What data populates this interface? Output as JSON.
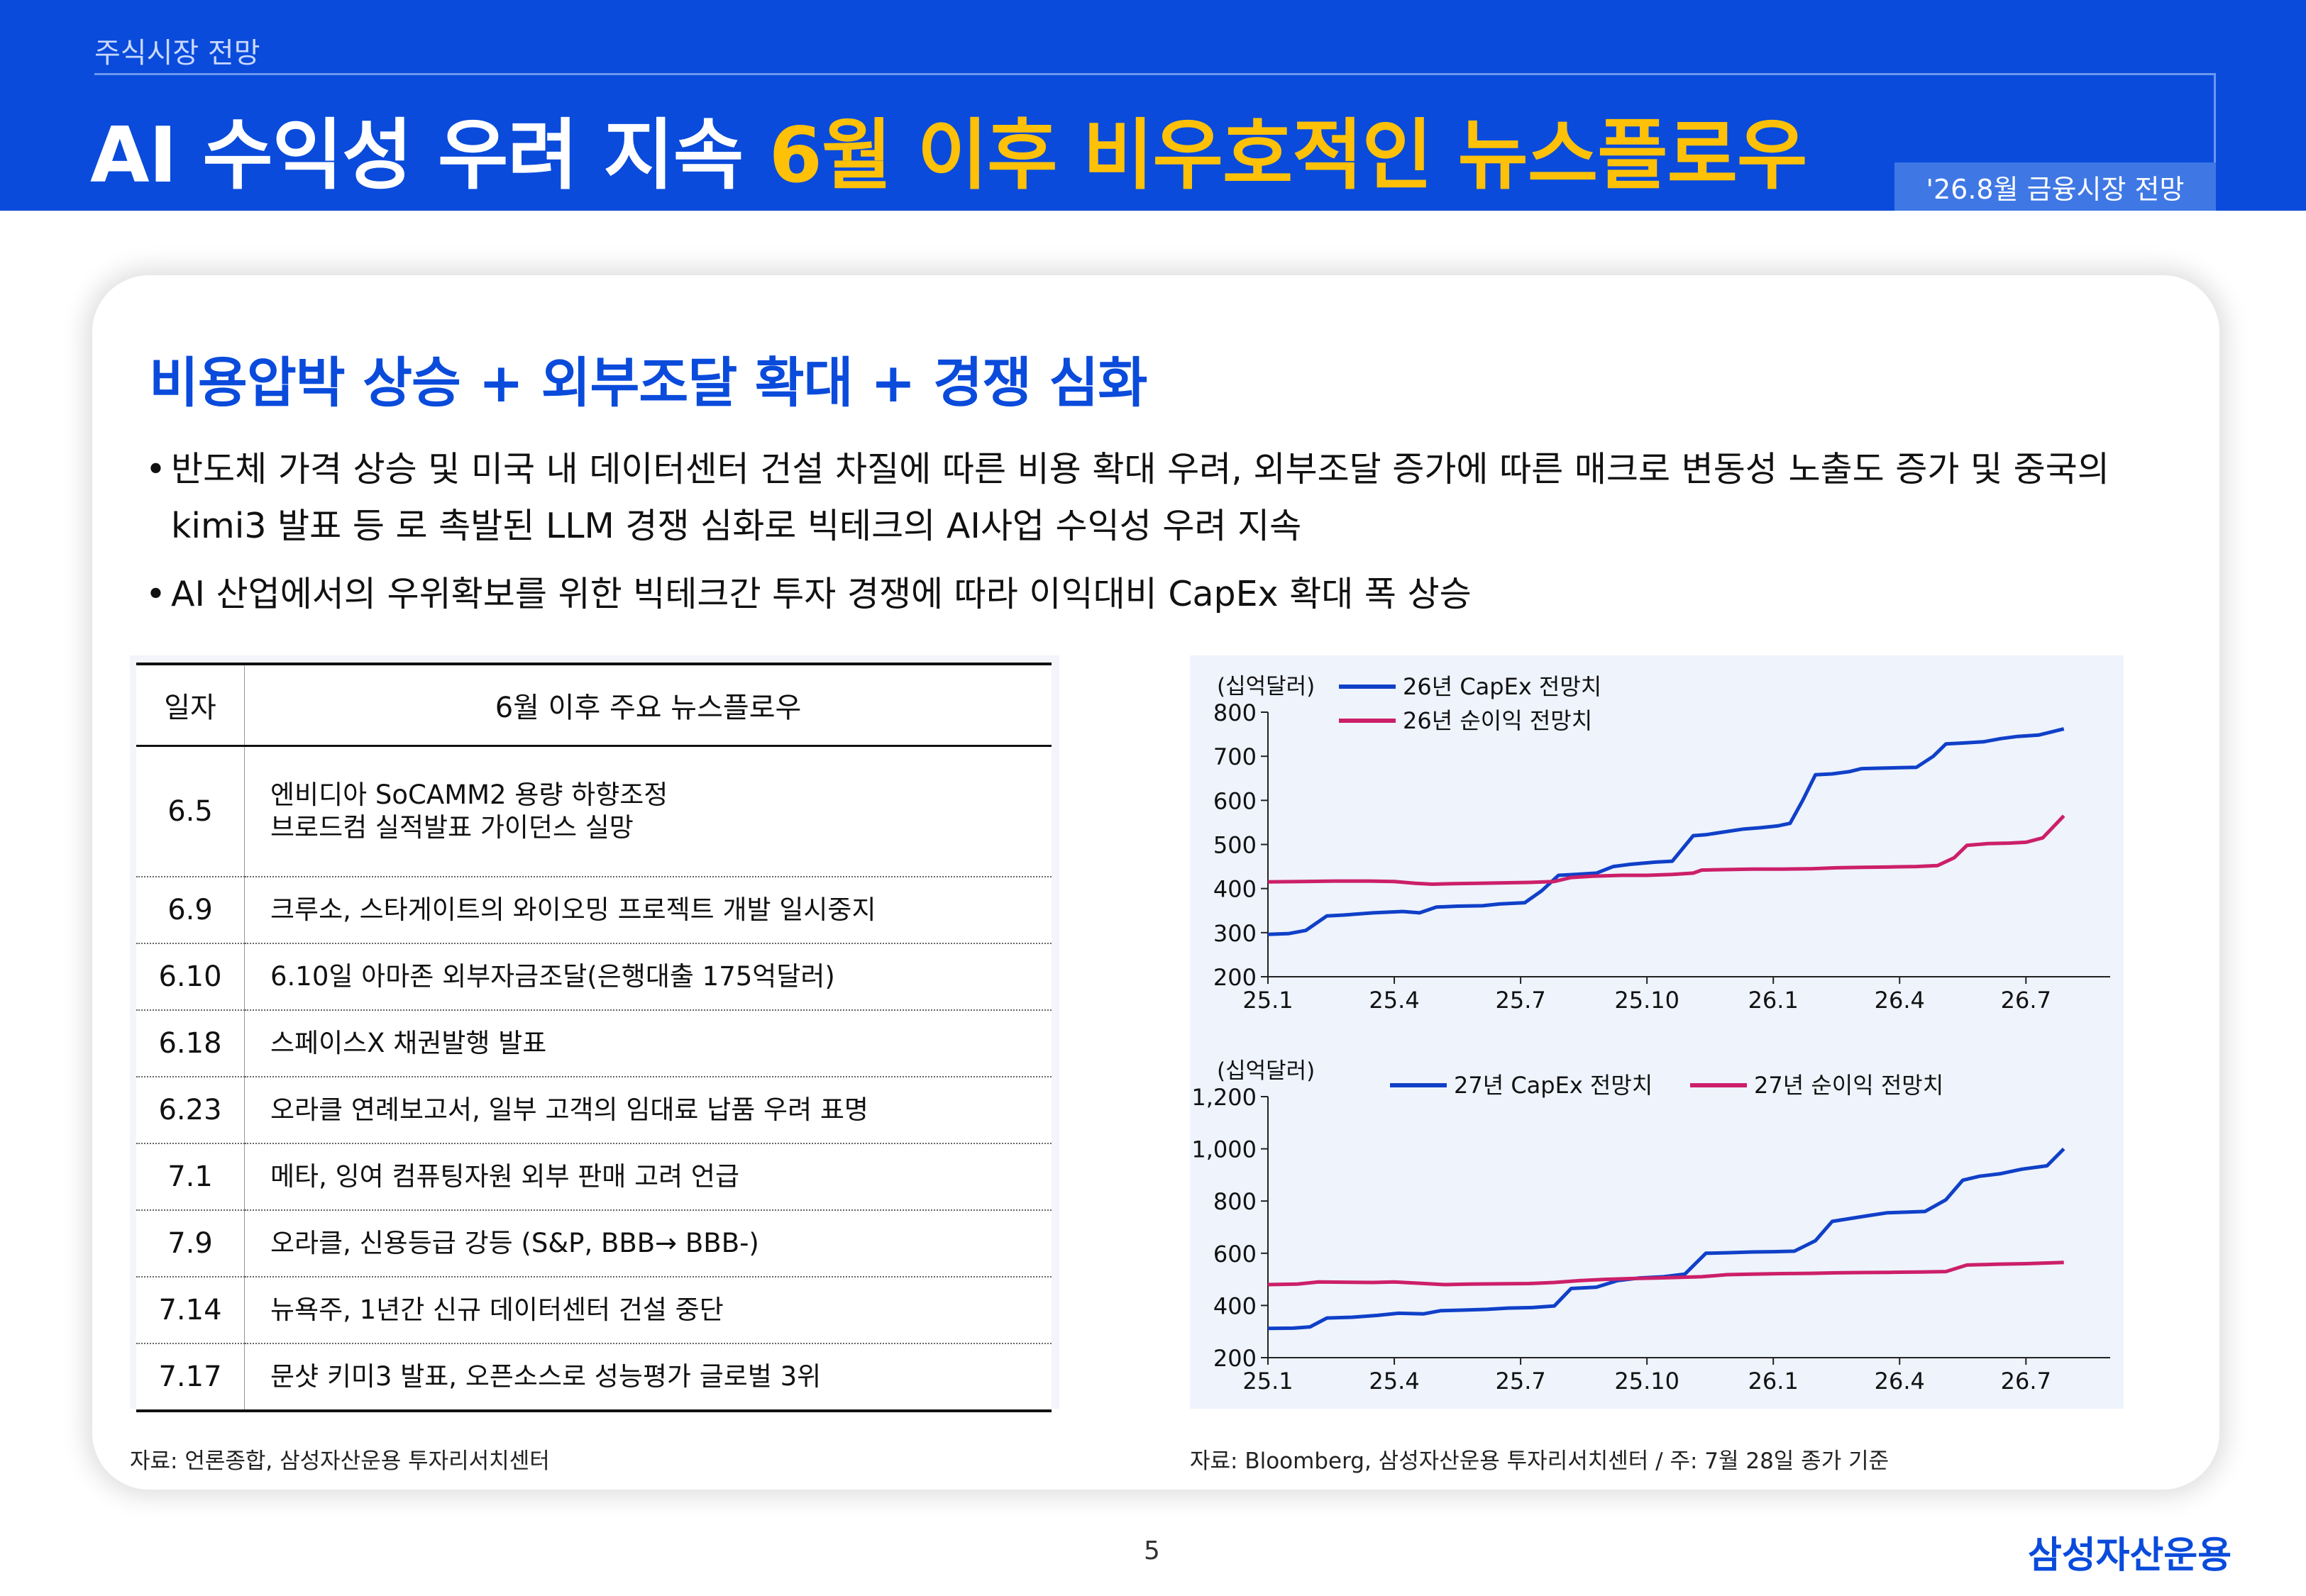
{
  "header": {
    "section_label": "주식시장 전망",
    "title_white": "AI 수익성 우려 지속",
    "title_yellow": "6월 이후 비우호적인 뉴스플로우",
    "badge": "'26.8월 금융시장 전망"
  },
  "headline": "비용압박 상승 + 외부조달 확대 + 경쟁 심화",
  "bullets": [
    "반도체 가격 상승 및 미국 내 데이터센터 건설 차질에 따른 비용 확대 우려, 외부조달 증가에 따른 매크로 변동성 노출도 증가 및 중국의 kimi3 발표 등 로 촉발된 LLM 경쟁 심화로 빅테크의 AI사업 수익성 우려 지속",
    "AI 산업에서의 우위확보를 위한 빅테크간 투자 경쟁에 따라 이익대비 CapEx 확대 폭 상승"
  ],
  "table": {
    "headers": [
      "일자",
      "6월 이후 주요 뉴스플로우"
    ],
    "rows": [
      {
        "date": "6.5",
        "events": [
          "엔비디아 SoCAMM2 용량 하향조정",
          "브로드컴 실적발표 가이던스 실망"
        ]
      },
      {
        "date": "6.9",
        "events": [
          "크루소, 스타게이트의 와이오밍 프로젝트 개발 일시중지"
        ]
      },
      {
        "date": "6.10",
        "events": [
          "6.10일 아마존 외부자금조달(은행대출 175억달러)"
        ]
      },
      {
        "date": "6.18",
        "events": [
          "스페이스X 채권발행 발표"
        ]
      },
      {
        "date": "6.23",
        "events": [
          "오라클 연례보고서, 일부 고객의 임대료 납품 우려 표명"
        ]
      },
      {
        "date": "7.1",
        "events": [
          "메타, 잉여 컴퓨팅자원 외부 판매 고려 언급"
        ]
      },
      {
        "date": "7.9",
        "events": [
          "오라클, 신용등급 강등 (S&P, BBB→ BBB-)"
        ]
      },
      {
        "date": "7.14",
        "events": [
          "뉴욕주, 1년간 신규 데이터센터 건설 중단"
        ]
      },
      {
        "date": "7.17",
        "events": [
          "문샷 키미3 발표, 오픈소스로 성능평가 글로벌 3위"
        ]
      }
    ]
  },
  "source_left": "자료: 언론종합, 삼성자산운용 투자리서치센터",
  "source_right": "자료: Bloomberg, 삼성자산운용 투자리서치센터 / 주: 7월 28일 종가 기준",
  "page_number": "5",
  "logo": "삼성자산운용",
  "chart_data": [
    {
      "type": "line",
      "ylabel": "(십억달러)",
      "ylim": [
        200,
        800
      ],
      "yticks": [
        200,
        300,
        400,
        500,
        600,
        700,
        800
      ],
      "ytick_labels": [
        "200",
        "300",
        "400",
        "500",
        "600",
        "700",
        "800"
      ],
      "xlim": [
        0,
        20
      ],
      "xticks": [
        0,
        3,
        6,
        9,
        12,
        15,
        18
      ],
      "xtick_labels": [
        "25.1",
        "25.4",
        "25.7",
        "25.10",
        "26.1",
        "26.4",
        "26.7"
      ],
      "legend_position": "top-left",
      "series": [
        {
          "name": "26년 CapEx 전망치",
          "color": "#1040c8",
          "x": [
            0,
            0.5,
            0.9,
            1.4,
            1.8,
            2.5,
            3.2,
            3.6,
            4.0,
            4.5,
            5.1,
            5.5,
            6.1,
            6.5,
            6.9,
            7.3,
            7.8,
            8.2,
            8.6,
            9.2,
            9.6,
            10.1,
            10.4,
            10.8,
            11.3,
            11.7,
            12.1,
            12.4,
            12.7,
            13.0,
            13.4,
            13.8,
            14.1,
            14.5,
            15.0,
            15.4,
            15.8,
            16.1,
            16.5,
            17.0,
            17.4,
            17.8,
            18.3,
            18.9
          ],
          "y": [
            296,
            298,
            305,
            338,
            340,
            345,
            348,
            345,
            358,
            360,
            361,
            365,
            368,
            395,
            430,
            432,
            435,
            450,
            455,
            460,
            462,
            520,
            522,
            528,
            535,
            538,
            542,
            548,
            600,
            658,
            660,
            665,
            672,
            673,
            674,
            675,
            700,
            728,
            730,
            733,
            740,
            745,
            748,
            762
          ]
        },
        {
          "name": "26년 순이익 전망치",
          "color": "#cc1f6a",
          "x": [
            0,
            0.8,
            1.6,
            2.4,
            3.0,
            3.5,
            3.9,
            4.4,
            5.0,
            5.6,
            6.2,
            6.8,
            7.2,
            7.7,
            8.4,
            9.0,
            9.6,
            10.1,
            10.3,
            10.9,
            11.5,
            12.2,
            12.9,
            13.5,
            14.1,
            14.8,
            15.4,
            15.9,
            16.3,
            16.6,
            17.1,
            17.6,
            18.0,
            18.4,
            18.9
          ],
          "y": [
            415,
            416,
            417,
            417,
            416,
            412,
            410,
            411,
            412,
            413,
            414,
            416,
            425,
            428,
            430,
            430,
            432,
            435,
            442,
            443,
            444,
            444,
            445,
            447,
            448,
            449,
            450,
            452,
            470,
            498,
            502,
            503,
            505,
            515,
            565
          ]
        }
      ]
    },
    {
      "type": "line",
      "ylabel": "(십억달러)",
      "ylim": [
        200,
        1200
      ],
      "yticks": [
        200,
        400,
        600,
        800,
        1000,
        1200
      ],
      "ytick_labels": [
        "200",
        "400",
        "600",
        "800",
        "1,000",
        "1,200"
      ],
      "xlim": [
        0,
        20
      ],
      "xticks": [
        0,
        3,
        6,
        9,
        12,
        15,
        18
      ],
      "xtick_labels": [
        "25.1",
        "25.4",
        "25.7",
        "25.10",
        "26.1",
        "26.4",
        "26.7"
      ],
      "legend_position": "top",
      "series": [
        {
          "name": "27년 CapEx 전망치",
          "color": "#1040c8",
          "x": [
            0,
            0.6,
            1.0,
            1.4,
            2.0,
            2.6,
            3.1,
            3.7,
            4.1,
            4.6,
            5.2,
            5.7,
            6.3,
            6.8,
            7.2,
            7.8,
            8.3,
            8.8,
            9.4,
            9.9,
            10.4,
            10.9,
            11.5,
            12.0,
            12.5,
            13.0,
            13.4,
            13.9,
            14.3,
            14.7,
            15.2,
            15.6,
            16.1,
            16.5,
            16.9,
            17.4,
            17.9,
            18.5,
            18.9
          ],
          "y": [
            312,
            313,
            318,
            352,
            355,
            362,
            370,
            368,
            380,
            382,
            385,
            390,
            392,
            398,
            465,
            470,
            495,
            505,
            510,
            520,
            600,
            602,
            605,
            606,
            608,
            648,
            722,
            735,
            745,
            755,
            758,
            760,
            805,
            880,
            895,
            905,
            922,
            935,
            1000
          ]
        },
        {
          "name": "27년 순이익 전망치",
          "color": "#cc1f6a",
          "x": [
            0,
            0.7,
            1.2,
            1.8,
            2.5,
            3.0,
            3.6,
            4.2,
            4.8,
            5.5,
            6.2,
            6.8,
            7.4,
            8.0,
            8.6,
            9.2,
            9.8,
            10.3,
            10.9,
            11.5,
            12.2,
            12.9,
            13.5,
            14.1,
            14.8,
            15.5,
            16.1,
            16.6,
            17.3,
            18.0,
            18.9
          ],
          "y": [
            480,
            482,
            490,
            489,
            488,
            490,
            485,
            480,
            482,
            483,
            484,
            488,
            495,
            500,
            503,
            505,
            508,
            510,
            518,
            520,
            522,
            523,
            525,
            526,
            527,
            528,
            530,
            555,
            558,
            560,
            565
          ]
        }
      ]
    }
  ]
}
